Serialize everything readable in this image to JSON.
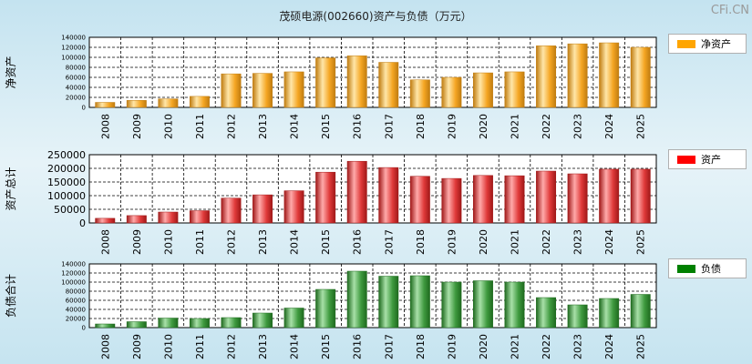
{
  "watermark": "CFi.CN",
  "chart_data": {
    "type": "bar",
    "title": "茂硕电源(002660)资产与负债（万元）",
    "categories": [
      "2008",
      "2009",
      "2010",
      "2011",
      "2012",
      "2013",
      "2014",
      "2015",
      "2016",
      "2017",
      "2018",
      "2019",
      "2020",
      "2021",
      "2022",
      "2023",
      "2024",
      "2025"
    ],
    "panels": [
      {
        "name": "净资产",
        "ylabel": "净资产",
        "legend": "净资产",
        "color": "#f5a623",
        "light": "#ffe6a8",
        "dark": "#c07c10",
        "swatch": "#ffa500",
        "ylim": [
          0,
          140000
        ],
        "yticks": [
          0,
          20000,
          40000,
          60000,
          80000,
          100000,
          120000,
          140000
        ],
        "values": [
          10000,
          14000,
          17000,
          22000,
          67000,
          68000,
          71000,
          99000,
          103000,
          90000,
          55000,
          60000,
          69000,
          71000,
          123000,
          127000,
          129000,
          120000
        ]
      },
      {
        "name": "资产",
        "ylabel": "资产总计",
        "legend": "资产",
        "color": "#e03a3a",
        "light": "#ffaaaa",
        "dark": "#a01818",
        "swatch": "#ff0000",
        "ylim": [
          0,
          250000
        ],
        "yticks": [
          0,
          50000,
          100000,
          150000,
          200000,
          250000
        ],
        "values": [
          17000,
          27000,
          40000,
          45000,
          91000,
          103000,
          118000,
          186000,
          226000,
          203000,
          171000,
          163000,
          174000,
          173000,
          190000,
          180000,
          197000,
          197000
        ]
      },
      {
        "name": "负债",
        "ylabel": "负债合计",
        "legend": "负债",
        "color": "#3f9a3f",
        "light": "#a8e0a8",
        "dark": "#1e6a1e",
        "swatch": "#008000",
        "ylim": [
          0,
          140000
        ],
        "yticks": [
          0,
          20000,
          40000,
          60000,
          80000,
          100000,
          120000,
          140000
        ],
        "values": [
          8000,
          13000,
          21000,
          20000,
          22000,
          32000,
          43000,
          84000,
          124000,
          113000,
          114000,
          100000,
          103000,
          100000,
          66000,
          50000,
          64000,
          73000
        ]
      }
    ]
  }
}
